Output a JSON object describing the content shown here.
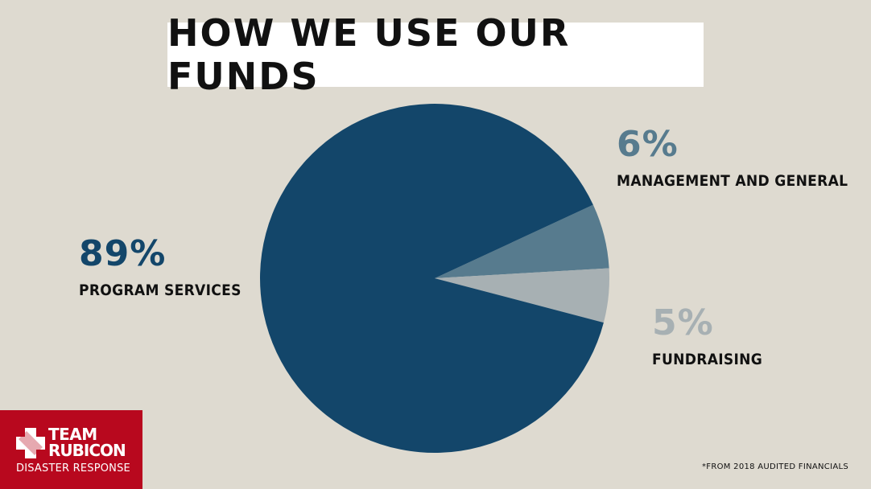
{
  "chart_data": {
    "type": "pie",
    "title": "HOW WE USE OUR FUNDS",
    "slices": [
      {
        "label": "PROGRAM SERVICES",
        "value": 89,
        "display": "89%",
        "color": "#13466a"
      },
      {
        "label": "MANAGEMENT AND GENERAL",
        "value": 6,
        "display": "6%",
        "color": "#577b8e"
      },
      {
        "label": "FUNDRAISING",
        "value": 5,
        "display": "5%",
        "color": "#a7b0b3"
      }
    ],
    "footnote": "*FROM 2018 AUDITED FINANCIALS"
  },
  "logo": {
    "line1": "TEAM",
    "line2": "RUBICON",
    "tagline": "DISASTER RESPONSE",
    "color": "#b8081e"
  }
}
